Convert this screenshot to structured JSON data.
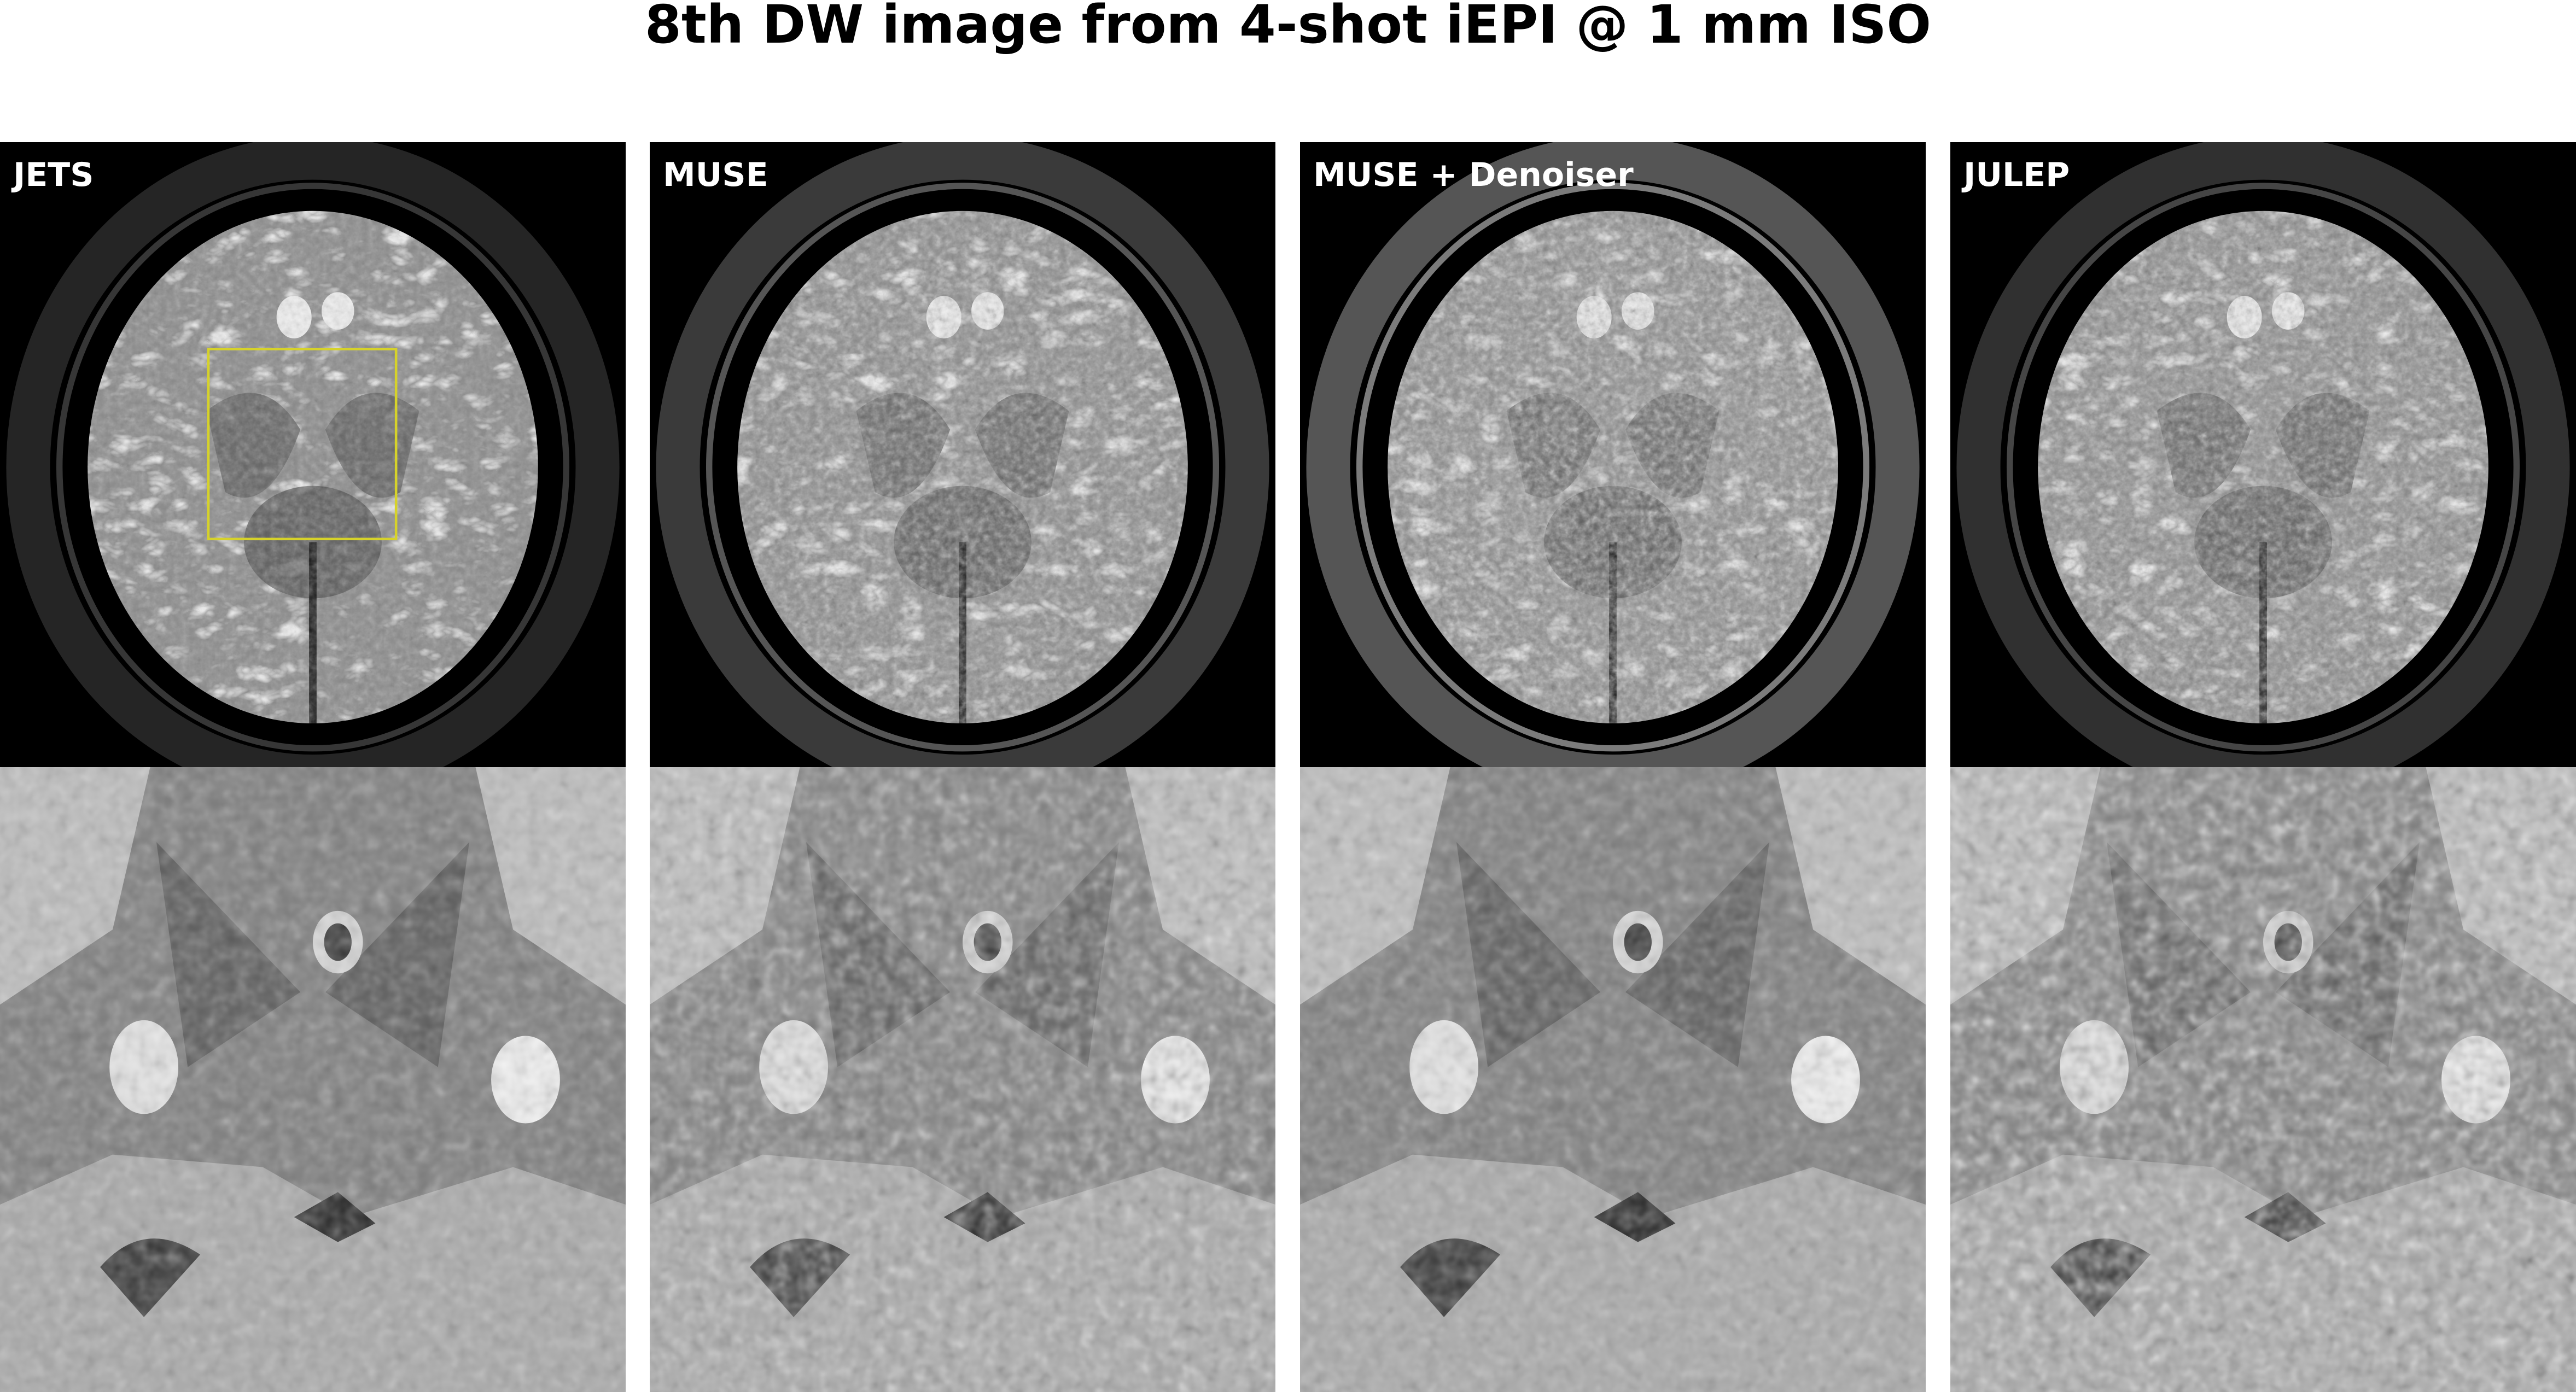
{
  "title": "8th DW image from 4-shot iEPI @ 1 mm ISO",
  "panels": [
    {
      "label": "JETS",
      "method": "jets"
    },
    {
      "label": "MUSE",
      "method": "muse"
    },
    {
      "label": "MUSE + Denoiser",
      "method": "muse-denoiser"
    },
    {
      "label": "JULEP",
      "method": "julep"
    }
  ],
  "roi_box_color": "#d6d22a",
  "background_color": "#000000"
}
